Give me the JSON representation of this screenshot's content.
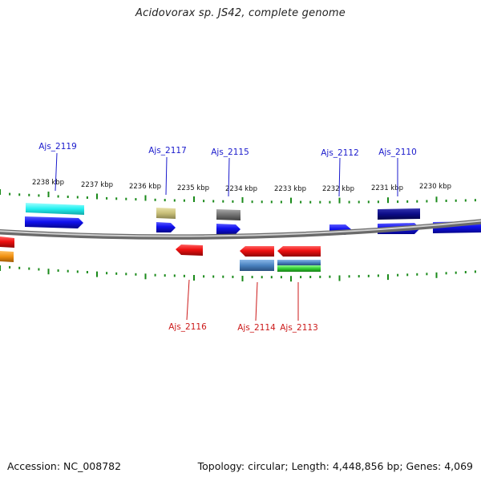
{
  "title": "Acidovorax sp. JS42, complete genome",
  "footer": {
    "accession": "Accession: NC_008782",
    "summary": "Topology: circular; Length: 4,448,856 bp; Genes: 4,069"
  },
  "kbp_labels": [
    "2238 kbp",
    "2237 kbp",
    "2236 kbp",
    "2235 kbp",
    "2234 kbp",
    "2233 kbp",
    "2232 kbp",
    "2231 kbp",
    "2230 kbp"
  ],
  "gene_labels": {
    "top": [
      "Ajs_2119",
      "Ajs_2117",
      "Ajs_2115",
      "Ajs_2112",
      "Ajs_2110"
    ],
    "bottom": [
      "Ajs_2116",
      "Ajs_2114",
      "Ajs_2113"
    ]
  },
  "colors": {
    "backbone": "#8a8a8a",
    "tick": "#1a8a1a",
    "forward_label": "#1a1acc",
    "reverse_label": "#cc1a1a",
    "cds_forward": "#1010ee",
    "cds_reverse": "#ee1010",
    "cyan": "#22f0f0",
    "khaki": "#c8bf78",
    "gray": "#707070",
    "navy": "#0c0c88",
    "steel": "#4a82c0",
    "green": "#33cc33",
    "orange": "#f09010"
  }
}
